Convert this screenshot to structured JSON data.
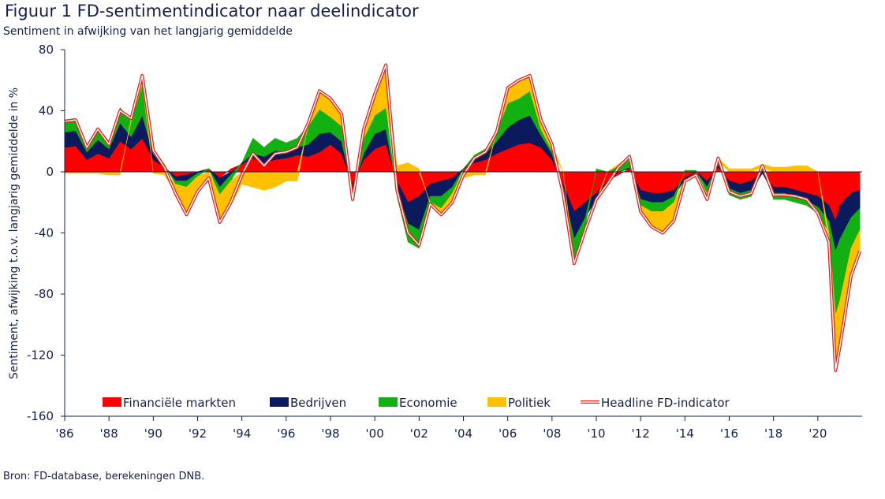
{
  "figure": {
    "title": "Figuur 1 FD-sentimentindicator naar deelindicator",
    "subtitle": "Sentiment in afwijking van het langjarig gemiddelde",
    "source": "Bron: FD-database, berekeningen DNB."
  },
  "colors": {
    "financiele": "#ff0000",
    "bedrijven": "#0b1a5c",
    "economie": "#12b012",
    "politiek": "#ffc000",
    "headline_outline": "#d9261c",
    "axis": "#15204a"
  },
  "chart_data": {
    "type": "area",
    "stacked": true,
    "xlabel": "",
    "ylabel": "Sentiment, afwijking t.o.v. langjarig gemiddelde in %",
    "ylim": [
      -160,
      80
    ],
    "yticks": [
      80,
      40,
      0,
      -40,
      -80,
      -120,
      -160
    ],
    "ytick_labels": [
      "80",
      "40",
      "0",
      "-40",
      "-80",
      "-120",
      "-160"
    ],
    "xlim": [
      1986,
      2022
    ],
    "xticks": [
      1986,
      1988,
      1990,
      1992,
      1994,
      1996,
      1998,
      2000,
      2002,
      2004,
      2006,
      2008,
      2010,
      2012,
      2014,
      2016,
      2018,
      2020
    ],
    "xtick_labels": [
      "'86",
      "'88",
      "'90",
      "'92",
      "'94",
      "'96",
      "'98",
      "'00",
      "'02",
      "'04",
      "'06",
      "'08",
      "'10",
      "'12",
      "'14",
      "'16",
      "'18",
      "'20"
    ],
    "legend_position": "bottom-inside",
    "x": [
      1986.0,
      1986.5,
      1987.0,
      1987.5,
      1988.0,
      1988.5,
      1989.0,
      1989.5,
      1990.0,
      1990.5,
      1991.0,
      1991.5,
      1992.0,
      1992.5,
      1993.0,
      1993.5,
      1994.0,
      1994.5,
      1995.0,
      1995.5,
      1996.0,
      1996.5,
      1997.0,
      1997.5,
      1998.0,
      1998.5,
      1999.0,
      1999.5,
      2000.0,
      2000.5,
      2001.0,
      2001.5,
      2002.0,
      2002.5,
      2003.0,
      2003.5,
      2004.0,
      2004.5,
      2005.0,
      2005.5,
      2006.0,
      2006.5,
      2007.0,
      2007.5,
      2008.0,
      2008.5,
      2009.0,
      2009.5,
      2010.0,
      2010.5,
      2011.0,
      2011.5,
      2012.0,
      2012.5,
      2013.0,
      2013.5,
      2014.0,
      2014.5,
      2015.0,
      2015.5,
      2016.0,
      2016.5,
      2017.0,
      2017.5,
      2018.0,
      2018.5,
      2019.0,
      2019.5,
      2020.0,
      2020.5,
      2020.8,
      2021.0,
      2021.5,
      2021.9
    ],
    "series": [
      {
        "name": "Financiële markten",
        "color": "#ff0000",
        "values": [
          16,
          17,
          8,
          12,
          9,
          20,
          15,
          22,
          8,
          3,
          -3,
          -2,
          0,
          2,
          -4,
          2,
          5,
          9,
          6,
          8,
          9,
          11,
          10,
          13,
          18,
          12,
          -8,
          8,
          15,
          18,
          -6,
          -20,
          -16,
          -8,
          -6,
          -4,
          2,
          6,
          8,
          12,
          15,
          18,
          19,
          16,
          8,
          -8,
          -26,
          -20,
          -14,
          -6,
          -2,
          2,
          -12,
          -14,
          -14,
          -12,
          -4,
          -2,
          -6,
          3,
          -6,
          -8,
          -6,
          1,
          -10,
          -10,
          -12,
          -14,
          -16,
          -22,
          -32,
          -22,
          -14,
          -12
        ]
      },
      {
        "name": "Bedrijven",
        "color": "#0b1a5c",
        "values": [
          10,
          10,
          5,
          9,
          6,
          12,
          8,
          15,
          4,
          1,
          -3,
          -4,
          -1,
          0,
          -6,
          -2,
          1,
          3,
          4,
          6,
          4,
          5,
          8,
          12,
          8,
          8,
          -4,
          4,
          10,
          10,
          -6,
          -14,
          -22,
          -8,
          -10,
          -6,
          0,
          3,
          4,
          8,
          14,
          16,
          18,
          8,
          4,
          -4,
          -18,
          -10,
          -4,
          -2,
          0,
          1,
          -6,
          -6,
          -6,
          -4,
          -1,
          0,
          -4,
          2,
          -5,
          -6,
          -6,
          -1,
          -4,
          -4,
          -5,
          -5,
          -7,
          -10,
          -20,
          -22,
          -16,
          -12
        ]
      },
      {
        "name": "Economie",
        "color": "#12b012",
        "values": [
          8,
          8,
          4,
          8,
          5,
          10,
          10,
          20,
          3,
          1,
          -2,
          -4,
          -2,
          0,
          -5,
          -4,
          0,
          10,
          6,
          8,
          6,
          6,
          12,
          16,
          10,
          10,
          -4,
          10,
          12,
          14,
          -4,
          -12,
          -12,
          -4,
          -8,
          -4,
          0,
          2,
          3,
          6,
          16,
          14,
          16,
          4,
          2,
          -2,
          -14,
          -6,
          2,
          0,
          4,
          5,
          -4,
          -6,
          -6,
          -4,
          1,
          1,
          -4,
          2,
          -4,
          -4,
          -4,
          2,
          -4,
          -4,
          -3,
          -3,
          -4,
          -8,
          -42,
          -40,
          -20,
          -14
        ]
      },
      {
        "name": "Politiek",
        "color": "#ffc000",
        "values": [
          -1,
          -1,
          -1,
          -1,
          -2,
          -2,
          2,
          6,
          -1,
          -2,
          -6,
          -18,
          -10,
          -6,
          -18,
          -16,
          -8,
          -10,
          -12,
          -10,
          -6,
          -6,
          2,
          12,
          12,
          8,
          -2,
          6,
          14,
          28,
          4,
          6,
          2,
          -1,
          -4,
          -6,
          -4,
          -2,
          -2,
          0,
          10,
          12,
          10,
          6,
          4,
          0,
          -2,
          -2,
          -2,
          0,
          1,
          2,
          -4,
          -10,
          -14,
          -12,
          -2,
          -1,
          -4,
          2,
          2,
          2,
          2,
          2,
          3,
          3,
          4,
          4,
          0,
          -6,
          -36,
          -30,
          -18,
          -14
        ]
      }
    ],
    "headline": {
      "name": "Headline FD-indicator",
      "color": "#d9261c"
    },
    "legend": [
      "Financiële markten",
      "Bedrijven",
      "Economie",
      "Politiek",
      "Headline FD-indicator"
    ]
  }
}
